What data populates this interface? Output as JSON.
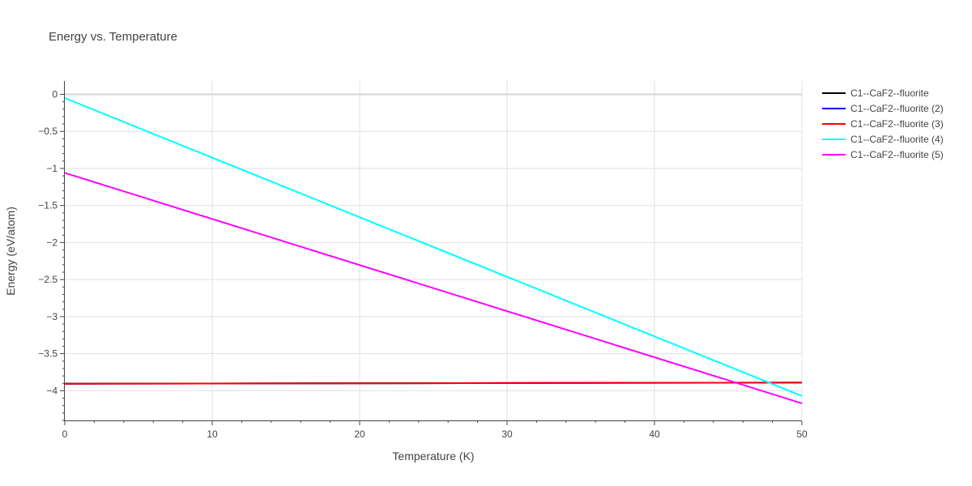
{
  "chart_data": {
    "type": "line",
    "title": "Energy vs. Temperature",
    "xlabel": "Temperature (K)",
    "ylabel": "Energy (eV/atom)",
    "xlim": [
      0,
      50
    ],
    "ylim": [
      -4.4,
      0.18
    ],
    "x_ticks": [
      0,
      10,
      20,
      30,
      40,
      50
    ],
    "x_tick_labels": [
      "0",
      "10",
      "20",
      "30",
      "40",
      "50"
    ],
    "y_ticks": [
      0,
      -0.5,
      -1,
      -1.5,
      -2,
      -2.5,
      -3,
      -3.5,
      -4
    ],
    "y_tick_labels": [
      "0",
      "−0.5",
      "−1",
      "−1.5",
      "−2",
      "−2.5",
      "−3",
      "−3.5",
      "−4"
    ],
    "grid": true,
    "legend_position": "top-right",
    "series": [
      {
        "name": "C1--CaF2--fluorite",
        "color": "#000000",
        "x": [
          0,
          50
        ],
        "y": [
          -3.905,
          -3.89
        ]
      },
      {
        "name": "C1--CaF2--fluorite (2)",
        "color": "#0000ff",
        "x": [
          0,
          50
        ],
        "y": [
          -3.905,
          -3.89
        ]
      },
      {
        "name": "C1--CaF2--fluorite (3)",
        "color": "#ff0000",
        "x": [
          0,
          50
        ],
        "y": [
          -3.905,
          -3.89
        ]
      },
      {
        "name": "C1--CaF2--fluorite (4)",
        "color": "#00ffff",
        "x": [
          0,
          50
        ],
        "y": [
          -0.05,
          -4.07
        ]
      },
      {
        "name": "C1--CaF2--fluorite (5)",
        "color": "#ff00ff",
        "x": [
          0,
          50
        ],
        "y": [
          -1.06,
          -4.17
        ]
      }
    ]
  }
}
